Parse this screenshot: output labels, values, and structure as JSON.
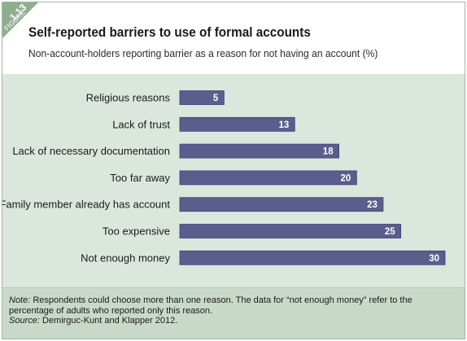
{
  "figure": {
    "number": "1.13",
    "label": "FIGURE"
  },
  "chart_data": {
    "type": "bar",
    "orientation": "horizontal",
    "title": "Self-reported barriers to use of formal accounts",
    "subtitle": "Non-account-holders reporting barrier as a reason for not having an account (%)",
    "categories": [
      "Religious reasons",
      "Lack of trust",
      "Lack of necessary documentation",
      "Too far away",
      "Family member already has account",
      "Too expensive",
      "Not enough money"
    ],
    "values": [
      5,
      13,
      18,
      20,
      23,
      25,
      30
    ],
    "xlim": [
      0,
      30
    ],
    "grid": false,
    "legend": "none",
    "data_labels": true
  },
  "note": {
    "label": "Note:",
    "text": " Respondents could choose more than one reason. The data for “not enough money” refer to the percentage of adults who reported only this reason."
  },
  "source": {
    "label": "Source:",
    "text": " Demirguc-Kunt and Klapper 2012."
  },
  "colors": {
    "bar": "#5b5e8c",
    "bar_stroke": "#3e4070",
    "plot_bg": "#dbe7dc",
    "flag": "#8fae90",
    "note_bg": "#c9d9c9"
  }
}
